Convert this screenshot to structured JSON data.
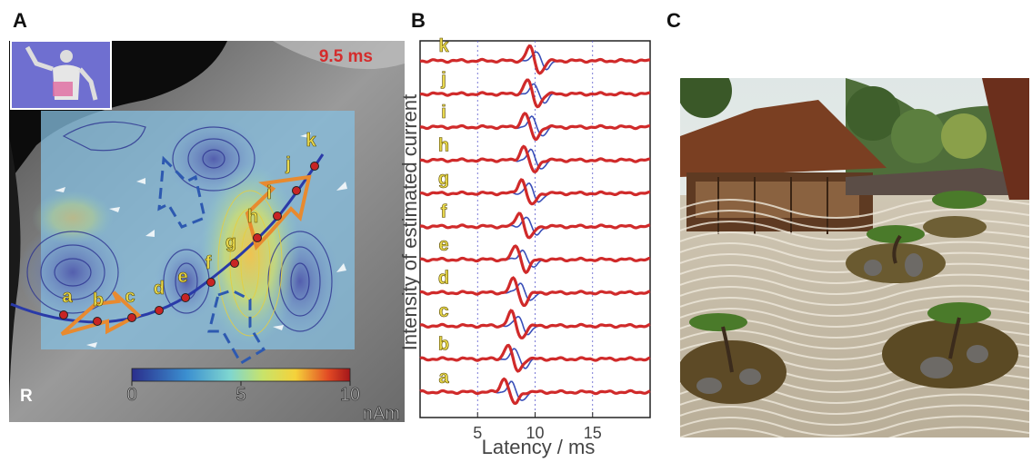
{
  "panel_a": {
    "label": "A",
    "time": "9.5 ms",
    "side": "R",
    "points": [
      "a",
      "b",
      "c",
      "d",
      "e",
      "f",
      "g",
      "h",
      "i",
      "j",
      "k"
    ],
    "colorbar": {
      "lim": [
        0,
        10
      ],
      "ticks": [
        0,
        5,
        10
      ],
      "unit": "nAm"
    }
  },
  "panel_b": {
    "label": "B",
    "ylabel": "Intensity of estimated current",
    "xlabel": "Latency / ms",
    "xlim": [
      0,
      20
    ],
    "xticks": [
      5,
      10,
      15
    ],
    "traces": [
      {
        "label": "a",
        "peak": 7.7
      },
      {
        "label": "b",
        "peak": 8.0
      },
      {
        "label": "c",
        "peak": 8.3
      },
      {
        "label": "d",
        "peak": 8.5
      },
      {
        "label": "e",
        "peak": 8.7
      },
      {
        "label": "f",
        "peak": 9.0
      },
      {
        "label": "g",
        "peak": 9.2
      },
      {
        "label": "h",
        "peak": 9.4
      },
      {
        "label": "i",
        "peak": 9.5
      },
      {
        "label": "j",
        "peak": 9.7
      },
      {
        "label": "k",
        "peak": 9.9
      }
    ]
  },
  "panel_c": {
    "label": "C"
  }
}
